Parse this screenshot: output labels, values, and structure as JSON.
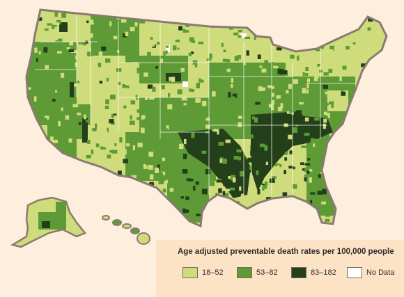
{
  "legend": {
    "title": "Age adjusted preventable death rates per 100,000 people",
    "items": [
      {
        "label": "18–52",
        "color": "#cfdc7c"
      },
      {
        "label": "53–82",
        "color": "#5e9a35"
      },
      {
        "label": "83–182",
        "color": "#23401a"
      },
      {
        "label": "No Data",
        "color": "#ffffff"
      }
    ]
  },
  "colors": {
    "background": "#fdeedd",
    "outline": "#8a7b70",
    "light": "#cfdc7c",
    "medium": "#5e9a35",
    "dark": "#23401a"
  }
}
